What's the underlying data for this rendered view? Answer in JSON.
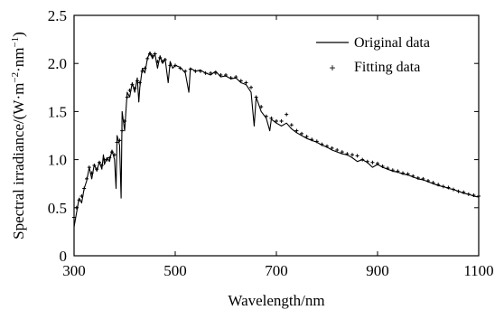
{
  "chart_data": {
    "type": "line",
    "title": "",
    "xlabel": "Wavelength/nm",
    "ylabel_main": "Spectral irradiance/(W·m",
    "ylabel_exp1": "−2",
    "ylabel_mid": "·nm",
    "ylabel_exp2": "−1",
    "ylabel_end": ")",
    "xlim": [
      300,
      1100
    ],
    "ylim": [
      0,
      2.5
    ],
    "x_ticks": [
      300,
      500,
      700,
      900,
      1100
    ],
    "x_tick_labels": [
      "300",
      "500",
      "700",
      "900",
      "1100"
    ],
    "y_ticks": [
      0,
      0.5,
      1.0,
      1.5,
      2.0,
      2.5
    ],
    "y_tick_labels": [
      "0",
      "0.5",
      "1.0",
      "1.5",
      "2.0",
      "2.5"
    ],
    "grid": false,
    "legend_position": "top-right",
    "series": [
      {
        "name": "Original data",
        "style": "solid line",
        "color": "#000000",
        "x": [
          300,
          305,
          310,
          315,
          320,
          325,
          330,
          335,
          340,
          345,
          350,
          355,
          358,
          360,
          365,
          370,
          375,
          380,
          383,
          385,
          390,
          393,
          395,
          400,
          405,
          410,
          415,
          420,
          425,
          428,
          430,
          435,
          440,
          445,
          450,
          455,
          460,
          465,
          470,
          475,
          480,
          486,
          490,
          495,
          500,
          510,
          520,
          527,
          530,
          540,
          550,
          560,
          570,
          580,
          590,
          600,
          610,
          620,
          630,
          640,
          650,
          656,
          660,
          670,
          680,
          687,
          690,
          700,
          710,
          720,
          730,
          740,
          750,
          760,
          770,
          780,
          790,
          800,
          810,
          820,
          830,
          840,
          850,
          860,
          870,
          880,
          890,
          900,
          910,
          920,
          930,
          940,
          950,
          960,
          970,
          980,
          990,
          1000,
          1010,
          1020,
          1030,
          1040,
          1050,
          1060,
          1070,
          1080,
          1090,
          1100
        ],
        "values": [
          0.3,
          0.45,
          0.6,
          0.55,
          0.7,
          0.78,
          0.92,
          0.8,
          0.95,
          0.88,
          0.98,
          0.9,
          1.05,
          0.95,
          1.02,
          0.98,
          1.1,
          1.0,
          0.7,
          1.25,
          1.15,
          0.6,
          1.5,
          1.3,
          1.7,
          1.65,
          1.8,
          1.7,
          1.85,
          1.6,
          1.75,
          1.95,
          1.9,
          2.05,
          2.12,
          2.05,
          2.1,
          1.95,
          2.08,
          2.0,
          2.05,
          1.8,
          2.02,
          1.95,
          1.98,
          1.96,
          1.9,
          1.7,
          1.95,
          1.92,
          1.93,
          1.9,
          1.88,
          1.92,
          1.86,
          1.87,
          1.84,
          1.85,
          1.8,
          1.78,
          1.7,
          1.35,
          1.65,
          1.5,
          1.43,
          1.3,
          1.42,
          1.38,
          1.35,
          1.38,
          1.32,
          1.28,
          1.25,
          1.22,
          1.2,
          1.18,
          1.15,
          1.13,
          1.1,
          1.08,
          1.06,
          1.05,
          1.02,
          0.98,
          1.0,
          0.97,
          0.92,
          0.95,
          0.92,
          0.9,
          0.88,
          0.87,
          0.85,
          0.84,
          0.82,
          0.8,
          0.79,
          0.77,
          0.75,
          0.73,
          0.72,
          0.7,
          0.69,
          0.67,
          0.65,
          0.64,
          0.62,
          0.61
        ]
      },
      {
        "name": "Fitting data",
        "style": "markers",
        "color": "#000000",
        "x": [
          300,
          305,
          310,
          315,
          320,
          325,
          330,
          335,
          340,
          345,
          350,
          355,
          360,
          365,
          370,
          375,
          380,
          385,
          390,
          395,
          400,
          405,
          410,
          415,
          420,
          425,
          430,
          435,
          440,
          445,
          450,
          455,
          460,
          465,
          470,
          475,
          480,
          490,
          500,
          510,
          520,
          530,
          540,
          550,
          560,
          570,
          580,
          590,
          600,
          610,
          620,
          630,
          640,
          650,
          660,
          670,
          680,
          690,
          700,
          710,
          720,
          730,
          740,
          750,
          760,
          770,
          780,
          790,
          800,
          810,
          820,
          830,
          840,
          850,
          860,
          870,
          880,
          890,
          900,
          910,
          920,
          930,
          940,
          950,
          960,
          970,
          980,
          990,
          1000,
          1010,
          1020,
          1030,
          1040,
          1050,
          1060,
          1070,
          1080,
          1090,
          1100
        ],
        "values": [
          0.4,
          0.5,
          0.58,
          0.62,
          0.7,
          0.8,
          0.92,
          0.86,
          0.94,
          0.9,
          0.97,
          0.94,
          1.0,
          1.0,
          1.02,
          1.08,
          1.05,
          1.18,
          1.2,
          1.3,
          1.4,
          1.65,
          1.72,
          1.78,
          1.74,
          1.82,
          1.8,
          1.92,
          1.95,
          2.05,
          2.1,
          2.08,
          2.1,
          2.02,
          2.06,
          2.02,
          2.04,
          1.98,
          1.98,
          1.95,
          1.92,
          1.94,
          1.92,
          1.92,
          1.9,
          1.9,
          1.9,
          1.88,
          1.88,
          1.85,
          1.86,
          1.82,
          1.8,
          1.75,
          1.65,
          1.55,
          1.45,
          1.43,
          1.4,
          1.4,
          1.47,
          1.36,
          1.3,
          1.27,
          1.24,
          1.21,
          1.19,
          1.16,
          1.14,
          1.12,
          1.1,
          1.08,
          1.06,
          1.05,
          1.04,
          1.0,
          0.98,
          0.97,
          0.96,
          0.93,
          0.91,
          0.89,
          0.88,
          0.86,
          0.85,
          0.83,
          0.81,
          0.8,
          0.78,
          0.76,
          0.74,
          0.72,
          0.71,
          0.69,
          0.67,
          0.66,
          0.64,
          0.63,
          0.62
        ]
      }
    ]
  }
}
